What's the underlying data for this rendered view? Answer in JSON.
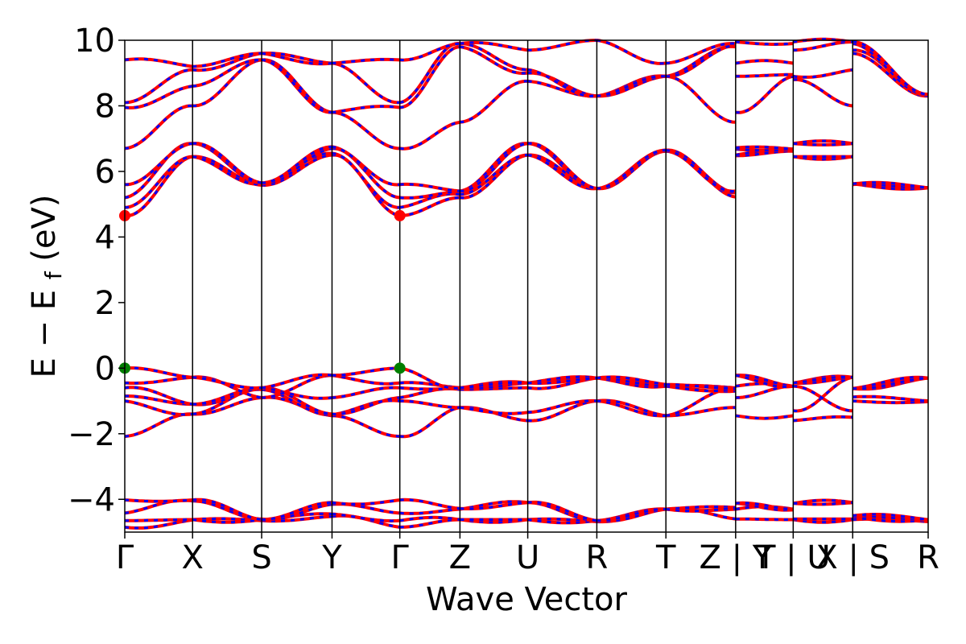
{
  "chart_data": {
    "type": "line",
    "xlabel": "Wave Vector",
    "ylabel": "E − E",
    "ylabel_sub": "f",
    "ylabel_unit": "(eV)",
    "ylim": [
      -5,
      10
    ],
    "y_ticks": [
      -4,
      -2,
      0,
      2,
      4,
      6,
      8,
      10
    ],
    "y_tick_labels": [
      "−4",
      "−2",
      "0",
      "2",
      "4",
      "6",
      "8",
      "10"
    ],
    "xlim": [
      0,
      12.56
    ],
    "k_path_positions": [
      0,
      1.06,
      2.14,
      3.24,
      4.3,
      5.24,
      6.3,
      7.38,
      8.46,
      9.55,
      10.45,
      11.38,
      12.56
    ],
    "k_labels": [
      {
        "x": 0,
        "text": "Γ"
      },
      {
        "x": 1.06,
        "text": "X"
      },
      {
        "x": 2.14,
        "text": "S"
      },
      {
        "x": 3.24,
        "text": "Y"
      },
      {
        "x": 4.3,
        "text": "Γ"
      },
      {
        "x": 5.24,
        "text": "Z"
      },
      {
        "x": 6.3,
        "text": "U"
      },
      {
        "x": 7.38,
        "text": "R"
      },
      {
        "x": 8.46,
        "text": "T"
      },
      {
        "x": 9.55,
        "text": "Z | Y"
      },
      {
        "x": 10.45,
        "text": "T | U"
      },
      {
        "x": 11.38,
        "text": "X | S"
      },
      {
        "x": 12.56,
        "text": "R"
      }
    ],
    "vertical_lines": true,
    "grid": false,
    "colors": {
      "spin_up": "#ff0000",
      "spin_down": "#0000ff",
      "vbm_marker": "#007f00",
      "cbm_marker": "#ff0000"
    },
    "cbm_markers": [
      {
        "x": 0,
        "y": 4.65
      },
      {
        "x": 4.3,
        "y": 4.65
      }
    ],
    "vbm_markers": [
      {
        "x": 0,
        "y": 0.0
      },
      {
        "x": 4.3,
        "y": 0.0
      }
    ],
    "series": [
      {
        "values": [
          [
            -4.85,
            -4.63
          ],
          [
            -4.62,
            -4.65
          ],
          [
            -4.65,
            -4.52
          ],
          [
            -4.52,
            -4.85
          ],
          [
            -4.85,
            -4.62
          ],
          [
            -4.62,
            -4.62
          ],
          [
            -4.62,
            -4.68
          ],
          [
            -4.68,
            -4.3
          ],
          [
            -4.3,
            -4.6
          ],
          [
            -4.6,
            -4.62
          ],
          [
            -4.62,
            -4.62
          ],
          [
            -4.62,
            -4.68
          ]
        ]
      },
      {
        "values": [
          [
            -4.65,
            -4.62
          ],
          [
            -4.62,
            -4.62
          ],
          [
            -4.62,
            -4.45
          ],
          [
            -4.45,
            -4.65
          ],
          [
            -4.65,
            -4.62
          ],
          [
            -4.62,
            -4.62
          ],
          [
            -4.62,
            -4.65
          ],
          [
            -4.65,
            -4.3
          ],
          [
            -4.3,
            -4.3
          ],
          [
            -4.3,
            -4.3
          ],
          [
            -4.6,
            -4.6
          ],
          [
            -4.55,
            -4.62
          ]
        ]
      },
      {
        "values": [
          [
            -4.42,
            -4.05
          ],
          [
            -4.05,
            -4.6
          ],
          [
            -4.6,
            -4.15
          ],
          [
            -4.15,
            -4.42
          ],
          [
            -4.42,
            -4.3
          ],
          [
            -4.3,
            -4.1
          ],
          [
            -4.1,
            -4.65
          ],
          [
            -4.65,
            -4.3
          ],
          [
            -4.3,
            -4.25
          ],
          [
            -4.12,
            -4.32
          ],
          [
            -4.12,
            -4.1
          ],
          [
            -4.5,
            -4.62
          ]
        ]
      },
      {
        "values": [
          [
            -4.02,
            -4.02
          ],
          [
            -4.02,
            -4.62
          ],
          [
            -4.62,
            -4.1
          ],
          [
            -4.1,
            -4.02
          ],
          [
            -4.02,
            -4.28
          ],
          [
            -4.28,
            -4.1
          ],
          [
            -4.1,
            -4.65
          ],
          [
            -4.65,
            -4.3
          ],
          [
            -4.3,
            -4.25
          ],
          [
            -4.12,
            -4.32
          ],
          [
            -4.12,
            -4.1
          ],
          [
            -4.5,
            -4.62
          ]
        ]
      },
      {
        "values": [
          [
            -2.08,
            -1.4
          ],
          [
            -1.4,
            -0.9
          ],
          [
            -0.9,
            -1.45
          ],
          [
            -1.45,
            -2.08
          ],
          [
            -2.08,
            -1.2
          ],
          [
            -1.2,
            -1.6
          ],
          [
            -1.6,
            -1.0
          ],
          [
            -1.0,
            -1.45
          ],
          [
            -1.45,
            -1.2
          ],
          [
            -1.45,
            -1.45
          ],
          [
            -1.6,
            -1.5
          ],
          [
            -1.0,
            -1.02
          ]
        ]
      },
      {
        "values": [
          [
            -1.0,
            -1.4
          ],
          [
            -1.4,
            -0.65
          ],
          [
            -0.65,
            -1.42
          ],
          [
            -1.42,
            -1.0
          ],
          [
            -1.0,
            -1.2
          ],
          [
            -1.2,
            -1.35
          ],
          [
            -1.35,
            -1.0
          ],
          [
            -1.0,
            -1.45
          ],
          [
            -1.45,
            -0.65
          ],
          [
            -0.9,
            -0.55
          ],
          [
            -1.3,
            -0.28
          ],
          [
            -0.88,
            -1.0
          ]
        ]
      },
      {
        "values": [
          [
            -0.85,
            -1.1
          ],
          [
            -1.1,
            -0.6
          ],
          [
            -0.6,
            -1.4
          ],
          [
            -1.4,
            -0.9
          ],
          [
            -0.9,
            -0.65
          ],
          [
            -0.65,
            -0.6
          ],
          [
            -0.6,
            -0.3
          ],
          [
            -0.3,
            -0.55
          ],
          [
            -0.55,
            -0.7
          ],
          [
            -0.55,
            -0.55
          ],
          [
            -0.55,
            -1.3
          ],
          [
            -0.62,
            -0.3
          ]
        ]
      },
      {
        "values": [
          [
            -0.6,
            -1.1
          ],
          [
            -1.1,
            -0.6
          ],
          [
            -0.6,
            -0.9
          ],
          [
            -0.9,
            -0.6
          ],
          [
            -0.6,
            -0.6
          ],
          [
            -0.6,
            -0.45
          ],
          [
            -0.45,
            -0.3
          ],
          [
            -0.3,
            -0.55
          ],
          [
            -0.55,
            -0.6
          ],
          [
            -0.22,
            -0.55
          ],
          [
            -0.45,
            -0.28
          ],
          [
            -0.62,
            -0.3
          ]
        ]
      },
      {
        "values": [
          [
            -0.45,
            -0.28
          ],
          [
            -0.28,
            -0.9
          ],
          [
            -0.9,
            -0.22
          ],
          [
            -0.22,
            -0.45
          ],
          [
            -0.45,
            -0.6
          ],
          [
            -0.6,
            -0.45
          ],
          [
            -0.45,
            -0.3
          ],
          [
            -0.3,
            -0.55
          ],
          [
            -0.55,
            -0.65
          ],
          [
            -0.22,
            -0.55
          ],
          [
            -0.45,
            -0.28
          ],
          [
            -0.62,
            -0.3
          ]
        ]
      },
      {
        "values": [
          [
            0.0,
            -0.28
          ],
          [
            -0.28,
            -0.6
          ],
          [
            -0.6,
            -0.22
          ],
          [
            -0.22,
            0.0
          ],
          [
            0.0,
            -0.6
          ],
          [
            -0.6,
            -0.45
          ],
          [
            -0.45,
            -0.3
          ],
          [
            -0.3,
            -0.5
          ],
          [
            -0.5,
            -0.62
          ],
          [
            -0.22,
            -0.55
          ],
          [
            -0.45,
            -0.28
          ],
          [
            -0.62,
            -0.3
          ]
        ]
      },
      {
        "values": [
          [
            4.65,
            6.45
          ],
          [
            6.45,
            5.58
          ],
          [
            5.58,
            6.5
          ],
          [
            6.5,
            4.65
          ],
          [
            4.65,
            5.2
          ],
          [
            5.2,
            6.5
          ],
          [
            6.5,
            5.48
          ],
          [
            5.48,
            6.62
          ],
          [
            6.62,
            5.22
          ],
          [
            6.48,
            6.62
          ],
          [
            6.45,
            6.45
          ],
          [
            5.6,
            5.5
          ]
        ]
      },
      {
        "values": [
          [
            4.9,
            6.45
          ],
          [
            6.45,
            5.62
          ],
          [
            5.62,
            6.55
          ],
          [
            6.55,
            4.9
          ],
          [
            4.9,
            5.3
          ],
          [
            5.3,
            6.5
          ],
          [
            6.5,
            5.48
          ],
          [
            5.48,
            6.62
          ],
          [
            6.62,
            5.35
          ],
          [
            6.5,
            6.62
          ],
          [
            6.45,
            6.45
          ],
          [
            5.62,
            5.5
          ]
        ]
      },
      {
        "values": [
          [
            5.2,
            6.85
          ],
          [
            6.85,
            5.65
          ],
          [
            5.65,
            6.7
          ],
          [
            6.7,
            5.2
          ],
          [
            5.2,
            5.4
          ],
          [
            5.4,
            6.85
          ],
          [
            6.85,
            5.48
          ],
          [
            5.48,
            6.65
          ],
          [
            6.65,
            5.35
          ],
          [
            6.68,
            6.68
          ],
          [
            6.85,
            6.85
          ],
          [
            5.62,
            5.5
          ]
        ]
      },
      {
        "values": [
          [
            5.6,
            6.85
          ],
          [
            6.85,
            5.65
          ],
          [
            5.65,
            6.75
          ],
          [
            6.75,
            5.6
          ],
          [
            5.6,
            5.4
          ],
          [
            5.4,
            6.85
          ],
          [
            6.85,
            5.48
          ],
          [
            5.48,
            6.65
          ],
          [
            6.65,
            5.4
          ],
          [
            6.72,
            6.68
          ],
          [
            6.85,
            6.85
          ],
          [
            5.62,
            5.5
          ]
        ]
      },
      {
        "values": [
          [
            6.7,
            8.0
          ],
          [
            8.0,
            9.4
          ],
          [
            9.4,
            7.8
          ],
          [
            7.8,
            6.7
          ],
          [
            6.7,
            7.5
          ],
          [
            7.5,
            8.75
          ],
          [
            8.75,
            8.3
          ],
          [
            8.3,
            8.9
          ],
          [
            8.9,
            7.5
          ],
          [
            7.8,
            8.9
          ],
          [
            8.8,
            8.0
          ],
          [
            9.6,
            8.3
          ]
        ]
      },
      {
        "values": [
          [
            7.95,
            8.6
          ],
          [
            8.6,
            9.4
          ],
          [
            9.4,
            7.8
          ],
          [
            7.8,
            7.95
          ],
          [
            7.95,
            9.8
          ],
          [
            9.8,
            9.0
          ],
          [
            9.0,
            8.3
          ],
          [
            8.3,
            8.9
          ],
          [
            8.9,
            9.8
          ],
          [
            8.9,
            8.95
          ],
          [
            8.9,
            9.1
          ],
          [
            9.7,
            8.3
          ]
        ]
      },
      {
        "values": [
          [
            8.1,
            9.1
          ],
          [
            9.1,
            9.6
          ],
          [
            9.6,
            9.3
          ],
          [
            9.3,
            8.1
          ],
          [
            8.1,
            9.9
          ],
          [
            9.9,
            9.1
          ],
          [
            9.1,
            8.3
          ],
          [
            8.3,
            8.9
          ],
          [
            8.9,
            9.85
          ],
          [
            9.3,
            9.3
          ],
          [
            9.7,
            9.95
          ],
          [
            9.9,
            8.35
          ]
        ]
      },
      {
        "values": [
          [
            9.4,
            9.2
          ],
          [
            9.2,
            9.6
          ],
          [
            9.6,
            9.3
          ],
          [
            9.3,
            9.4
          ],
          [
            9.4,
            9.9
          ],
          [
            9.9,
            9.7
          ],
          [
            9.7,
            10.0
          ],
          [
            10.0,
            9.3
          ],
          [
            9.3,
            9.9
          ],
          [
            9.95,
            9.9
          ],
          [
            9.95,
            9.95
          ],
          [
            9.95,
            8.35
          ]
        ]
      }
    ]
  }
}
